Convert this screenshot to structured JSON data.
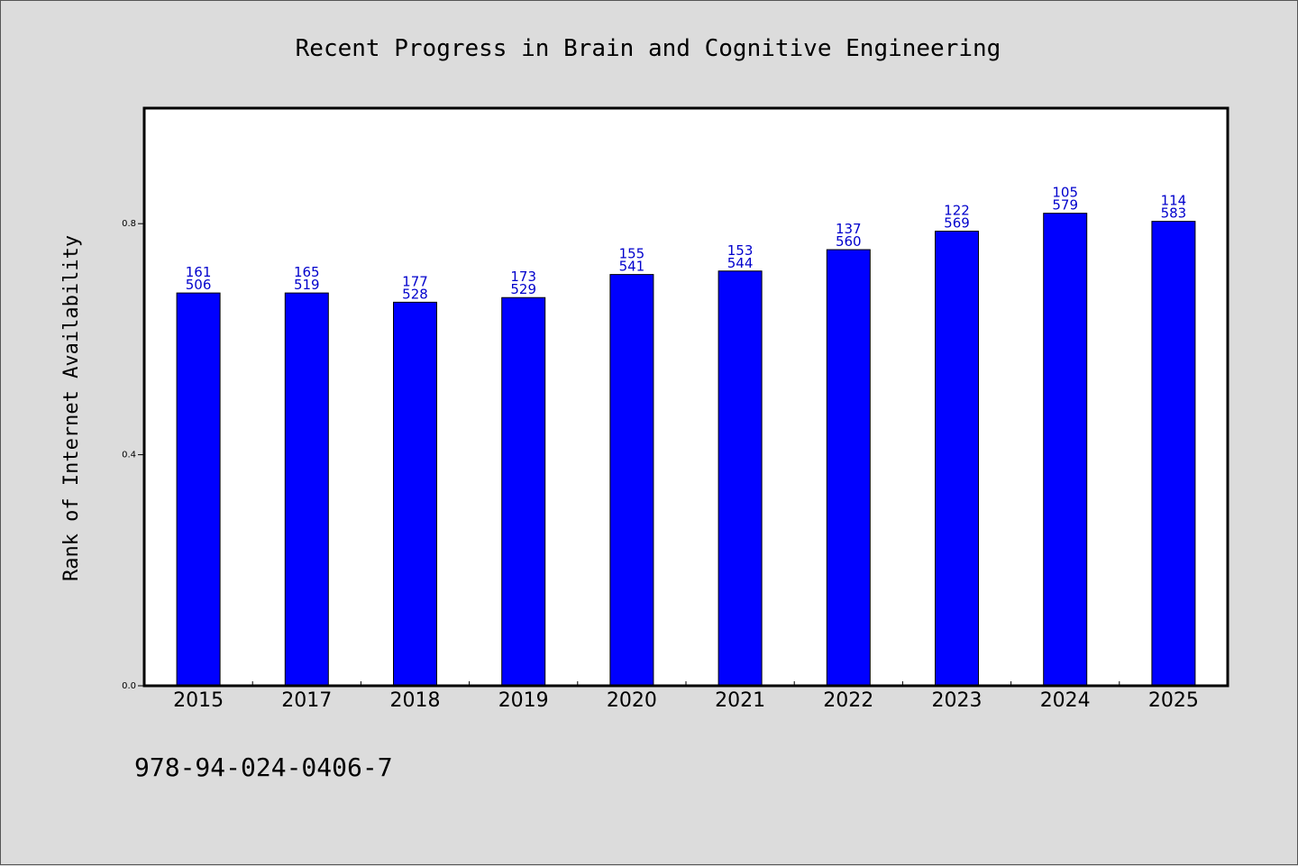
{
  "chart_data": {
    "type": "bar",
    "title": "Recent Progress in Brain and Cognitive Engineering",
    "ylabel": "Rank of Internet Availability",
    "xlabel": "",
    "categories": [
      "2015",
      "2017",
      "2018",
      "2019",
      "2020",
      "2021",
      "2022",
      "2023",
      "2024",
      "2025"
    ],
    "values": [
      0.68,
      0.68,
      0.664,
      0.672,
      0.712,
      0.718,
      0.755,
      0.787,
      0.818,
      0.804
    ],
    "labels_top": [
      "161",
      "165",
      "177",
      "173",
      "155",
      "153",
      "137",
      "122",
      "105",
      "114"
    ],
    "labels_bottom": [
      "506",
      "519",
      "528",
      "529",
      "541",
      "544",
      "560",
      "569",
      "579",
      "583"
    ],
    "yticks": [
      "0.0",
      "0.4",
      "0.8"
    ],
    "ytick_values": [
      0.0,
      0.4,
      0.8
    ],
    "ylim": [
      0,
      1.0
    ],
    "grid": false,
    "bar_color": "#0000ff",
    "label_color": "#0000cc"
  },
  "footnote": "978-94-024-0406-7"
}
